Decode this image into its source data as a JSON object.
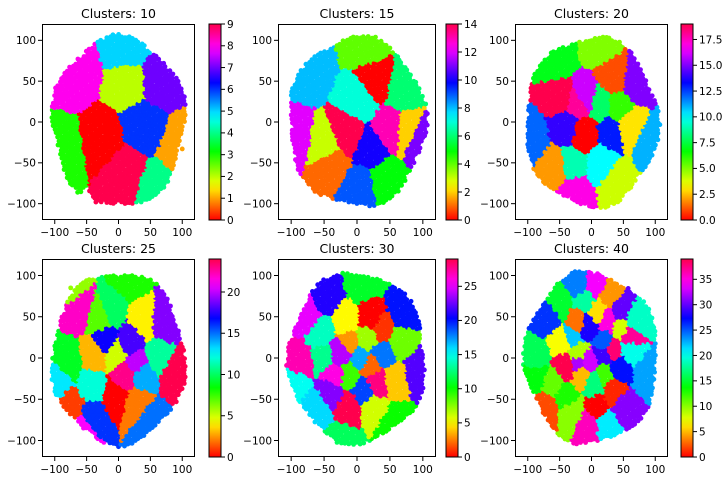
{
  "figure": {
    "background": "#ffffff",
    "colormap": "hsv"
  },
  "chart_data": [
    {
      "type": "scatter",
      "title": "Clusters: 10",
      "xlabel": "",
      "ylabel": "",
      "xlim": [
        -120,
        120
      ],
      "ylim": [
        -120,
        120
      ],
      "xticks": [
        -100,
        -50,
        0,
        50,
        100
      ],
      "xtick_labels": [
        "−100",
        "−50",
        "0",
        "50",
        "100"
      ],
      "yticks": [
        -100,
        -50,
        0,
        50,
        100
      ],
      "ytick_labels": [
        "−100",
        "−50",
        "0",
        "50",
        "100"
      ],
      "grid": false,
      "colorbar": {
        "min": 0,
        "max": 9,
        "ticks": [
          0,
          1,
          2,
          3,
          4,
          5,
          6,
          7,
          8,
          9
        ],
        "tick_labels": [
          "0",
          "1",
          "2",
          "3",
          "4",
          "5",
          "6",
          "7",
          "8",
          "9"
        ]
      },
      "clusters": [
        {
          "label": 0,
          "x": -25,
          "y": -22
        },
        {
          "label": 1,
          "x": 100,
          "y": -33
        },
        {
          "label": 2,
          "x": 18,
          "y": 47
        },
        {
          "label": 3,
          "x": -88,
          "y": -35
        },
        {
          "label": 4,
          "x": 60,
          "y": -82
        },
        {
          "label": 5,
          "x": 15,
          "y": 90
        },
        {
          "label": 6,
          "x": 38,
          "y": -3
        },
        {
          "label": 7,
          "x": 62,
          "y": 50
        },
        {
          "label": 8,
          "x": -70,
          "y": 60
        },
        {
          "label": 9,
          "x": 10,
          "y": -62
        }
      ]
    },
    {
      "type": "scatter",
      "title": "Clusters: 15",
      "xlabel": "",
      "ylabel": "",
      "xlim": [
        -120,
        120
      ],
      "ylim": [
        -120,
        120
      ],
      "xticks": [
        -100,
        -50,
        0,
        50,
        100
      ],
      "xtick_labels": [
        "−100",
        "−50",
        "0",
        "50",
        "100"
      ],
      "yticks": [
        -100,
        -50,
        0,
        50,
        100
      ],
      "ytick_labels": [
        "−100",
        "−50",
        "0",
        "50",
        "100"
      ],
      "grid": false,
      "colorbar": {
        "min": 0,
        "max": 14,
        "ticks": [
          0,
          2,
          4,
          6,
          8,
          10,
          12,
          14
        ],
        "tick_labels": [
          "0",
          "2",
          "4",
          "6",
          "8",
          "10",
          "12",
          "14"
        ]
      },
      "clusters": [
        {
          "label": 0,
          "x": 28,
          "y": 50
        },
        {
          "label": 1,
          "x": -38,
          "y": -50
        },
        {
          "label": 2,
          "x": 78,
          "y": -10
        },
        {
          "label": 3,
          "x": -45,
          "y": -30
        },
        {
          "label": 4,
          "x": 15,
          "y": 95
        },
        {
          "label": 5,
          "x": 42,
          "y": -70
        },
        {
          "label": 6,
          "x": 70,
          "y": 40
        },
        {
          "label": 7,
          "x": 5,
          "y": 28
        },
        {
          "label": 8,
          "x": -75,
          "y": 65
        },
        {
          "label": 9,
          "x": 5,
          "y": -80
        },
        {
          "label": 10,
          "x": 22,
          "y": -32
        },
        {
          "label": 11,
          "x": 95,
          "y": -20
        },
        {
          "label": 12,
          "x": -98,
          "y": -18
        },
        {
          "label": 13,
          "x": 50,
          "y": -8
        },
        {
          "label": 14,
          "x": -15,
          "y": -15
        }
      ]
    },
    {
      "type": "scatter",
      "title": "Clusters: 20",
      "xlabel": "",
      "ylabel": "",
      "xlim": [
        -120,
        120
      ],
      "ylim": [
        -120,
        120
      ],
      "xticks": [
        -100,
        -50,
        0,
        50,
        100
      ],
      "xtick_labels": [
        "−100",
        "−50",
        "0",
        "50",
        "100"
      ],
      "yticks": [
        -100,
        -50,
        0,
        50,
        100
      ],
      "ytick_labels": [
        "−100",
        "−50",
        "0",
        "50",
        "100"
      ],
      "grid": false,
      "colorbar": {
        "min": 0,
        "max": 19,
        "ticks": [
          0,
          2.5,
          5,
          7.5,
          10,
          12.5,
          15,
          17.5
        ],
        "tick_labels": [
          "0.0",
          "2.5",
          "5.0",
          "7.5",
          "10.0",
          "12.5",
          "15.0",
          "17.5"
        ]
      },
      "clusters": [
        {
          "label": 0,
          "x": -10,
          "y": -15
        },
        {
          "label": 1,
          "x": 35,
          "y": 55
        },
        {
          "label": 2,
          "x": -55,
          "y": -55
        },
        {
          "label": 3,
          "x": 60,
          "y": -5
        },
        {
          "label": 4,
          "x": 40,
          "y": -75
        },
        {
          "label": 5,
          "x": 15,
          "y": 95
        },
        {
          "label": 6,
          "x": 42,
          "y": 18
        },
        {
          "label": 7,
          "x": -55,
          "y": 75
        },
        {
          "label": 8,
          "x": 15,
          "y": 22
        },
        {
          "label": 9,
          "x": -30,
          "y": -50
        },
        {
          "label": 10,
          "x": 15,
          "y": -50
        },
        {
          "label": 11,
          "x": 95,
          "y": -25
        },
        {
          "label": 12,
          "x": -95,
          "y": -20
        },
        {
          "label": 13,
          "x": 30,
          "y": -12
        },
        {
          "label": 14,
          "x": -40,
          "y": -5
        },
        {
          "label": 15,
          "x": 70,
          "y": 50
        },
        {
          "label": 16,
          "x": -10,
          "y": 30
        },
        {
          "label": 17,
          "x": -25,
          "y": -85
        },
        {
          "label": 18,
          "x": -20,
          "y": 22
        },
        {
          "label": 19,
          "x": -50,
          "y": 30
        }
      ]
    },
    {
      "type": "scatter",
      "title": "Clusters: 25",
      "xlabel": "",
      "ylabel": "",
      "xlim": [
        -120,
        120
      ],
      "ylim": [
        -120,
        120
      ],
      "xticks": [
        -100,
        -50,
        0,
        50,
        100
      ],
      "xtick_labels": [
        "−100",
        "−50",
        "0",
        "50",
        "100"
      ],
      "yticks": [
        -100,
        -50,
        0,
        50,
        100
      ],
      "ytick_labels": [
        "−100",
        "−50",
        "0",
        "50",
        "100"
      ],
      "grid": false,
      "colorbar": {
        "min": 0,
        "max": 24,
        "ticks": [
          0,
          5,
          10,
          15,
          20
        ],
        "tick_labels": [
          "0",
          "5",
          "10",
          "15",
          "20"
        ]
      },
      "clusters": [
        {
          "label": 0,
          "x": -5,
          "y": -45
        },
        {
          "label": 1,
          "x": -72,
          "y": -60
        },
        {
          "label": 2,
          "x": 30,
          "y": -55
        },
        {
          "label": 3,
          "x": -35,
          "y": 5
        },
        {
          "label": 4,
          "x": 40,
          "y": 45
        },
        {
          "label": 5,
          "x": -5,
          "y": 5
        },
        {
          "label": 6,
          "x": -75,
          "y": 85
        },
        {
          "label": 7,
          "x": -30,
          "y": 50
        },
        {
          "label": 8,
          "x": 15,
          "y": 95
        },
        {
          "label": 9,
          "x": -80,
          "y": -5
        },
        {
          "label": 10,
          "x": -10,
          "y": 60
        },
        {
          "label": 11,
          "x": 60,
          "y": 0
        },
        {
          "label": 12,
          "x": -40,
          "y": -35
        },
        {
          "label": 13,
          "x": -95,
          "y": -25
        },
        {
          "label": 14,
          "x": 40,
          "y": -20
        },
        {
          "label": 15,
          "x": 50,
          "y": -75
        },
        {
          "label": 16,
          "x": -40,
          "y": -70
        },
        {
          "label": 17,
          "x": -20,
          "y": 20
        },
        {
          "label": 18,
          "x": 20,
          "y": 20
        },
        {
          "label": 19,
          "x": 70,
          "y": 45
        },
        {
          "label": 20,
          "x": 30,
          "y": -5
        },
        {
          "label": 21,
          "x": -55,
          "y": -85
        },
        {
          "label": 22,
          "x": -60,
          "y": 60
        },
        {
          "label": 23,
          "x": 10,
          "y": -20
        },
        {
          "label": 24,
          "x": 90,
          "y": -20
        }
      ]
    },
    {
      "type": "scatter",
      "title": "Clusters: 30",
      "xlabel": "",
      "ylabel": "",
      "xlim": [
        -120,
        120
      ],
      "ylim": [
        -120,
        120
      ],
      "xticks": [
        -100,
        -50,
        0,
        50,
        100
      ],
      "xtick_labels": [
        "−100",
        "−50",
        "0",
        "50",
        "100"
      ],
      "yticks": [
        -100,
        -50,
        0,
        50,
        100
      ],
      "ytick_labels": [
        "−100",
        "−50",
        "0",
        "50",
        "100"
      ],
      "grid": false,
      "colorbar": {
        "min": 0,
        "max": 29,
        "ticks": [
          0,
          5,
          10,
          15,
          20,
          25
        ],
        "tick_labels": [
          "0",
          "5",
          "10",
          "15",
          "20",
          "25"
        ]
      },
      "clusters": [
        {
          "label": 0,
          "x": 20,
          "y": 50
        },
        {
          "label": 1,
          "x": 40,
          "y": 35
        },
        {
          "label": 2,
          "x": 20,
          "y": -10
        },
        {
          "label": 3,
          "x": -10,
          "y": 20
        },
        {
          "label": 4,
          "x": 55,
          "y": -25
        },
        {
          "label": 5,
          "x": -15,
          "y": 45
        },
        {
          "label": 6,
          "x": 25,
          "y": -60
        },
        {
          "label": 7,
          "x": 15,
          "y": 25
        },
        {
          "label": 8,
          "x": 65,
          "y": 20
        },
        {
          "label": 9,
          "x": -10,
          "y": -20
        },
        {
          "label": 10,
          "x": 55,
          "y": -80
        },
        {
          "label": 11,
          "x": 10,
          "y": 90
        },
        {
          "label": 12,
          "x": -20,
          "y": -100
        },
        {
          "label": 13,
          "x": -50,
          "y": 0
        },
        {
          "label": 14,
          "x": -55,
          "y": 30
        },
        {
          "label": 15,
          "x": -95,
          "y": -30
        },
        {
          "label": 16,
          "x": -60,
          "y": -60
        },
        {
          "label": 17,
          "x": 5,
          "y": 0
        },
        {
          "label": 18,
          "x": 40,
          "y": 5
        },
        {
          "label": 19,
          "x": 10,
          "y": -40
        },
        {
          "label": 20,
          "x": 70,
          "y": 55
        },
        {
          "label": 21,
          "x": -45,
          "y": 75
        },
        {
          "label": 22,
          "x": 95,
          "y": -15
        },
        {
          "label": 23,
          "x": -40,
          "y": -40
        },
        {
          "label": 24,
          "x": -25,
          "y": 5
        },
        {
          "label": 25,
          "x": -75,
          "y": 50
        },
        {
          "label": 26,
          "x": -35,
          "y": -20
        },
        {
          "label": 27,
          "x": -85,
          "y": -5
        },
        {
          "label": 28,
          "x": 30,
          "y": -30
        },
        {
          "label": 29,
          "x": -10,
          "y": -60
        }
      ]
    },
    {
      "type": "scatter",
      "title": "Clusters: 40",
      "xlabel": "",
      "ylabel": "",
      "xlim": [
        -120,
        120
      ],
      "ylim": [
        -120,
        120
      ],
      "xticks": [
        -100,
        -50,
        0,
        50,
        100
      ],
      "xtick_labels": [
        "−100",
        "−50",
        "0",
        "50",
        "100"
      ],
      "yticks": [
        -100,
        -50,
        0,
        50,
        100
      ],
      "ytick_labels": [
        "−100",
        "−50",
        "0",
        "50",
        "100"
      ],
      "grid": false,
      "colorbar": {
        "min": 0,
        "max": 39,
        "ticks": [
          0,
          5,
          10,
          15,
          20,
          25,
          30,
          35
        ],
        "tick_labels": [
          "0",
          "5",
          "10",
          "15",
          "20",
          "25",
          "30",
          "35"
        ]
      },
      "clusters": [
        {
          "label": 0,
          "x": 10,
          "y": -60
        },
        {
          "label": 1,
          "x": 35,
          "y": -40
        },
        {
          "label": 2,
          "x": -70,
          "y": -60
        },
        {
          "label": 3,
          "x": -20,
          "y": 45
        },
        {
          "label": 4,
          "x": 30,
          "y": 75
        },
        {
          "label": 5,
          "x": -15,
          "y": -20
        },
        {
          "label": 6,
          "x": 10,
          "y": 55
        },
        {
          "label": 7,
          "x": -45,
          "y": 20
        },
        {
          "label": 8,
          "x": 45,
          "y": 35
        },
        {
          "label": 9,
          "x": -20,
          "y": 5
        },
        {
          "label": 10,
          "x": -30,
          "y": -65
        },
        {
          "label": 11,
          "x": -60,
          "y": -30
        },
        {
          "label": 12,
          "x": 20,
          "y": -20
        },
        {
          "label": 13,
          "x": -40,
          "y": -45
        },
        {
          "label": 14,
          "x": -85,
          "y": -20
        },
        {
          "label": 15,
          "x": -50,
          "y": 65
        },
        {
          "label": 16,
          "x": -85,
          "y": 0
        },
        {
          "label": 17,
          "x": 5,
          "y": -30
        },
        {
          "label": 18,
          "x": -10,
          "y": 70
        },
        {
          "label": 19,
          "x": 70,
          "y": 45
        },
        {
          "label": 20,
          "x": 60,
          "y": 10
        },
        {
          "label": 21,
          "x": 25,
          "y": -80
        },
        {
          "label": 22,
          "x": -30,
          "y": 25
        },
        {
          "label": 23,
          "x": 90,
          "y": -20
        },
        {
          "label": 24,
          "x": -20,
          "y": 90
        },
        {
          "label": 25,
          "x": 20,
          "y": 20
        },
        {
          "label": 26,
          "x": -65,
          "y": 50
        },
        {
          "label": 27,
          "x": 45,
          "y": -10
        },
        {
          "label": 28,
          "x": -5,
          "y": 40
        },
        {
          "label": 29,
          "x": 20,
          "y": 5
        },
        {
          "label": 30,
          "x": 45,
          "y": 60
        },
        {
          "label": 31,
          "x": 50,
          "y": -60
        },
        {
          "label": 32,
          "x": -20,
          "y": -5
        },
        {
          "label": 33,
          "x": -5,
          "y": -5
        },
        {
          "label": 34,
          "x": 5,
          "y": 90
        },
        {
          "label": 35,
          "x": 25,
          "y": 45
        },
        {
          "label": 36,
          "x": -5,
          "y": -80
        },
        {
          "label": 37,
          "x": 60,
          "y": 25
        },
        {
          "label": 38,
          "x": 35,
          "y": 10
        },
        {
          "label": 39,
          "x": -40,
          "y": -10
        }
      ]
    }
  ]
}
